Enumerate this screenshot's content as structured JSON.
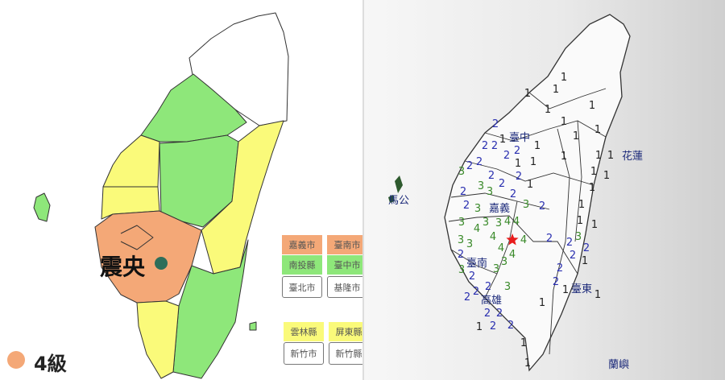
{
  "left_map": {
    "epicenter_label": "震央",
    "legend_level": "4級",
    "colors": {
      "level4": "#f4a877",
      "level3": "#fafa7a",
      "level2": "#8ee77a",
      "level1": "#ffffff",
      "epicenter": "#2e6e5a"
    },
    "county_buttons": [
      {
        "label": "嘉義市",
        "color": "#f4a877"
      },
      {
        "label": "臺南市",
        "color": "#f4a877"
      },
      {
        "label": "南投縣",
        "color": "#8ee77a"
      },
      {
        "label": "臺中市",
        "color": "#8ee77a"
      },
      {
        "label": "臺北市",
        "color": "#ffffff"
      },
      {
        "label": "基隆市",
        "color": "#ffffff"
      },
      {
        "label": "雲林縣",
        "color": "#fafa7a"
      },
      {
        "label": "屏東縣",
        "color": "#fafa7a"
      },
      {
        "label": "新竹市",
        "color": "#ffffff"
      },
      {
        "label": "新竹縣",
        "color": "#ffffff"
      }
    ]
  },
  "right_map": {
    "cities": [
      "臺中",
      "花蓮",
      "嘉義",
      "臺南",
      "高雄",
      "臺東",
      "馬公",
      "蘭嶼"
    ],
    "intensity_colors": {
      "1": "#222222",
      "2": "#2a2fb0",
      "3": "#3a8a2a",
      "4": "#3a8a2a"
    },
    "epicenter_marker": "red-star",
    "station_intensities": [
      "1",
      "1",
      "1",
      "1",
      "1",
      "2",
      "1",
      "1",
      "2",
      "1",
      "1",
      "1",
      "1",
      "1",
      "1",
      "1",
      "1",
      "1",
      "1",
      "2",
      "2",
      "2",
      "3",
      "2",
      "1",
      "2",
      "2",
      "1",
      "1",
      "1",
      "2",
      "2",
      "2",
      "2",
      "2",
      "2",
      "3",
      "2",
      "3",
      "2",
      "3",
      "2",
      "2",
      "3",
      "3",
      "3",
      "4",
      "3",
      "2",
      "2",
      "3",
      "4",
      "3",
      "3",
      "4",
      "4",
      "4",
      "4",
      "2",
      "3",
      "4",
      "3",
      "3",
      "2",
      "3",
      "2",
      "2",
      "2",
      "2",
      "2",
      "2",
      "2",
      "1",
      "1",
      "1",
      "1",
      "1",
      "1",
      "1",
      "1"
    ]
  }
}
